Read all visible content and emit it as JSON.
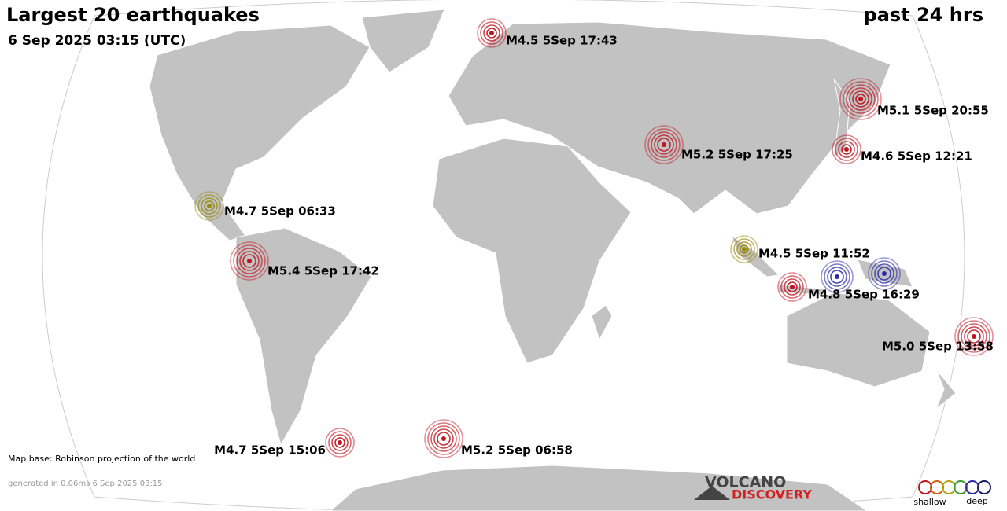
{
  "header": {
    "title": "Largest 20 earthquakes",
    "period": "past 24 hrs",
    "timestamp": "6 Sep 2025 03:15 (UTC)"
  },
  "quakes": [
    {
      "label": "M4.5  5Sep 17:43",
      "color": "#c0141e"
    },
    {
      "label": "M5.1  5Sep 20:55",
      "color": "#c0141e"
    },
    {
      "label": "M5.2  5Sep 17:25",
      "color": "#c0141e"
    },
    {
      "label": "M4.6  5Sep 12:21",
      "color": "#c0141e"
    },
    {
      "label": "M4.7  5Sep 06:33",
      "color": "#9a8a10"
    },
    {
      "label": "M5.4  5Sep 17:42",
      "color": "#c0141e"
    },
    {
      "label": "M4.5  5Sep 11:52",
      "color": "#9a8a10"
    },
    {
      "label": "M4.8  5Sep 16:29",
      "color": "#c0141e"
    },
    {
      "color": "#2a2aa8"
    },
    {
      "color": "#2a2aa8"
    },
    {
      "label": "M5.0  5Sep 13:58",
      "color": "#c0141e"
    },
    {
      "label": "M4.7  5Sep 15:06",
      "color": "#c0141e"
    },
    {
      "label": "M5.2  5Sep 06:58",
      "color": "#c0141e"
    }
  ],
  "footer": {
    "map_base": "Map base: Robinson projection of the world",
    "generated": "generated in 0.06ms  6 Sep 2025 03:15"
  },
  "logo": {
    "line1": "VOLCANO",
    "line2": "DISCOVERY"
  },
  "legend": {
    "shallow": "shallow",
    "deep": "deep"
  }
}
